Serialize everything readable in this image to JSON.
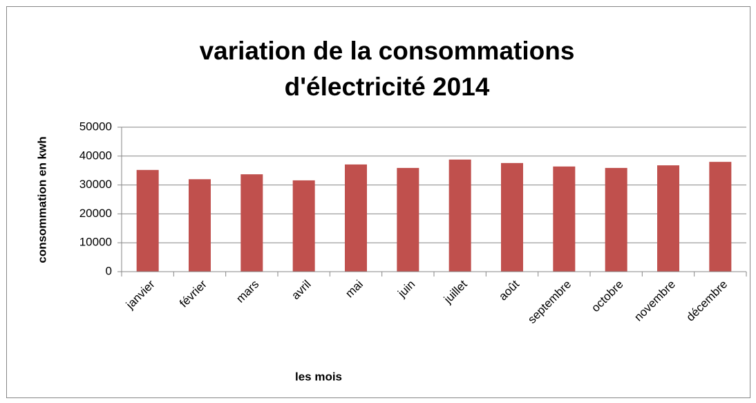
{
  "chart_data": {
    "type": "bar",
    "title": [
      "variation de la  consommations",
      "d'électricité 2014"
    ],
    "x_label": "les mois",
    "y_label": "consommation en kwh",
    "categories": [
      "janvier",
      "février",
      "mars",
      "avril",
      "mai",
      "juin",
      "juillet",
      "août",
      "septembre",
      "octobre",
      "novembre",
      "décembre"
    ],
    "values": [
      35200,
      32000,
      33700,
      31600,
      37100,
      35900,
      38800,
      37600,
      36400,
      35900,
      36800,
      38000
    ],
    "color": "#c0504d",
    "ylim": [
      0,
      50000
    ],
    "yticks": [
      0,
      10000,
      20000,
      30000,
      40000,
      50000
    ],
    "grid": true
  }
}
